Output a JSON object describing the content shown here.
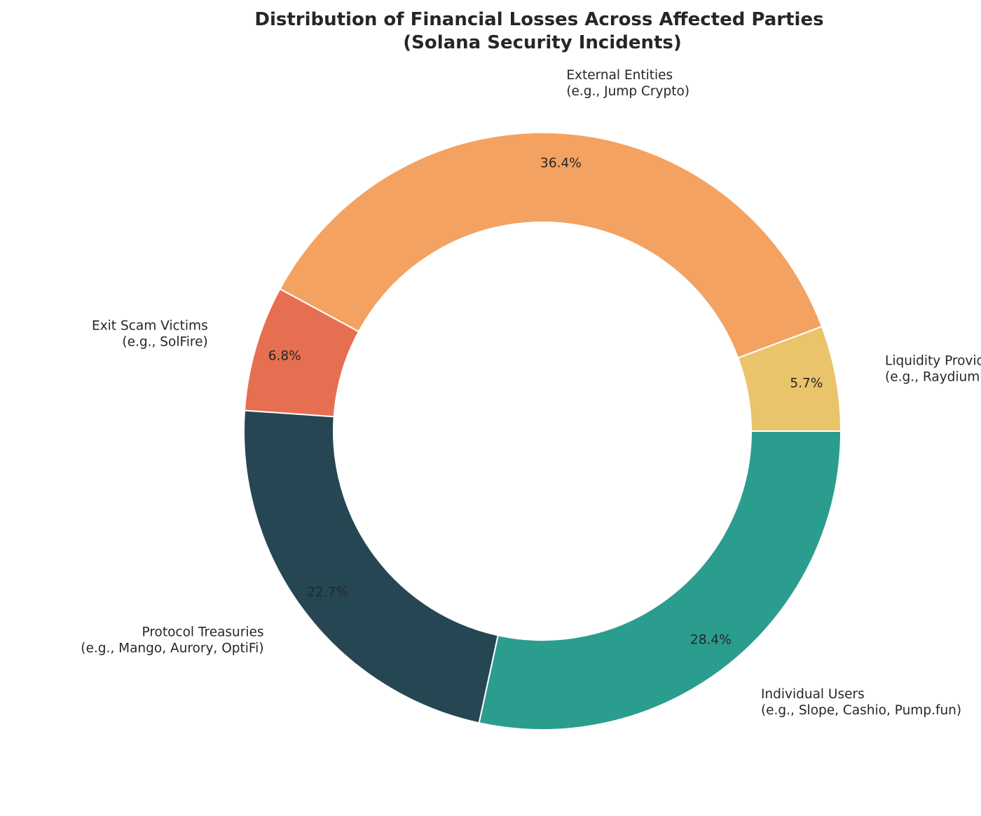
{
  "chart_data": {
    "type": "pie",
    "donut": true,
    "title_lines": [
      "Distribution of Financial Losses Across Affected Parties",
      "(Solana Security Incidents)"
    ],
    "start_angle_deg": 0,
    "direction": "counterclockwise",
    "slices": [
      {
        "label_lines": [
          "Liquidity Providers",
          "(e.g., Raydium)"
        ],
        "value": 5.7,
        "pct_label": "5.7%",
        "color": "#E9C46A"
      },
      {
        "label_lines": [
          "External Entities",
          "(e.g., Jump Crypto)"
        ],
        "value": 36.4,
        "pct_label": "36.4%",
        "color": "#F4A261"
      },
      {
        "label_lines": [
          "Exit Scam Victims",
          "(e.g., SolFire)"
        ],
        "value": 6.8,
        "pct_label": "6.8%",
        "color": "#E76F51"
      },
      {
        "label_lines": [
          "Protocol Treasuries",
          "(e.g., Mango, Aurory, OptiFi)"
        ],
        "value": 22.7,
        "pct_label": "22.7%",
        "color": "#264653"
      },
      {
        "label_lines": [
          "Individual Users",
          "(e.g., Slope, Cashio, Pump.fun)"
        ],
        "value": 28.4,
        "pct_label": "28.4%",
        "color": "#2A9D8F"
      }
    ]
  }
}
